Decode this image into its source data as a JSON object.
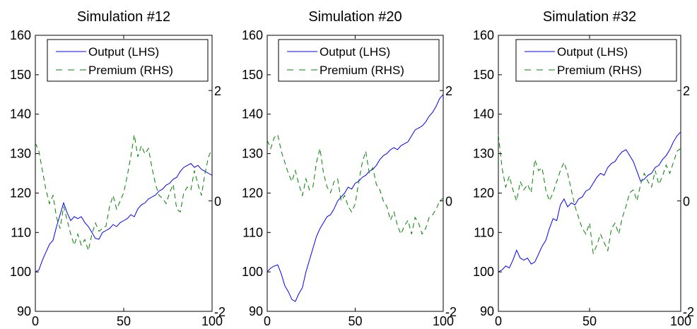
{
  "chart_data": [
    {
      "type": "line",
      "title": "Simulation #12",
      "xlim": [
        0,
        100
      ],
      "ylim": [
        90,
        160
      ],
      "y2lim": [
        -2,
        3
      ],
      "x_ticks": [
        "0",
        "50",
        "100"
      ],
      "y_ticks": [
        "90",
        "100",
        "110",
        "120",
        "130",
        "140",
        "150",
        "160"
      ],
      "y2_ticks": [
        "-2",
        "0",
        "2"
      ],
      "legend": "top-right",
      "series": [
        {
          "name": "Output (LHS)",
          "axis": "left",
          "color": "#0000ff",
          "style": "solid",
          "x": [
            0,
            2,
            4,
            6,
            8,
            10,
            12,
            14,
            16,
            18,
            20,
            22,
            24,
            26,
            28,
            30,
            32,
            34,
            36,
            38,
            40,
            42,
            44,
            46,
            48,
            50,
            52,
            54,
            56,
            58,
            60,
            62,
            64,
            66,
            68,
            70,
            72,
            74,
            76,
            78,
            80,
            82,
            84,
            86,
            88,
            90,
            92,
            94,
            96,
            98,
            100
          ],
          "y": [
            100,
            100.5,
            103,
            105,
            107,
            108,
            111.5,
            114.5,
            117.5,
            115,
            113,
            114,
            113.5,
            114,
            112.5,
            111.5,
            110,
            108.5,
            108.3,
            110,
            110.5,
            111,
            112,
            111.5,
            112.5,
            113,
            113.5,
            114.5,
            114,
            116,
            117,
            117.5,
            118.5,
            119,
            119.5,
            120.5,
            121,
            122,
            122.5,
            123.5,
            124,
            125.5,
            126.5,
            127,
            127.5,
            126.5,
            127,
            126,
            125.5,
            125,
            124.5
          ]
        },
        {
          "name": "Premium (RHS)",
          "axis": "right",
          "color": "#008000",
          "style": "dashed",
          "x": [
            0,
            2,
            4,
            6,
            8,
            10,
            12,
            14,
            16,
            18,
            20,
            22,
            24,
            26,
            28,
            30,
            32,
            34,
            36,
            38,
            40,
            42,
            44,
            46,
            48,
            50,
            52,
            54,
            56,
            58,
            60,
            62,
            64,
            66,
            68,
            70,
            72,
            74,
            76,
            78,
            80,
            82,
            84,
            86,
            88,
            90,
            92,
            94,
            96,
            98,
            100
          ],
          "y": [
            1.05,
            0.9,
            0.55,
            0.2,
            -0.05,
            0.1,
            -0.3,
            -0.5,
            -0.1,
            -0.35,
            -0.6,
            -0.8,
            -0.6,
            -0.8,
            -0.7,
            -0.9,
            -0.6,
            -0.4,
            -0.55,
            -0.5,
            -0.45,
            -0.1,
            0.1,
            -0.15,
            0.0,
            0.15,
            0.45,
            0.8,
            1.2,
            0.8,
            1.0,
            0.85,
            0.95,
            0.6,
            0.3,
            0.1,
            0.05,
            -0.05,
            0.15,
            0.3,
            -0.15,
            -0.2,
            0.15,
            0.25,
            0.2,
            0.55,
            0.3,
            0.1,
            0.5,
            0.8,
            0.95
          ]
        }
      ]
    },
    {
      "type": "line",
      "title": "Simulation #20",
      "xlim": [
        0,
        100
      ],
      "ylim": [
        90,
        160
      ],
      "y2lim": [
        -2,
        3
      ],
      "x_ticks": [
        "0",
        "50",
        "100"
      ],
      "y_ticks": [
        "90",
        "100",
        "110",
        "120",
        "130",
        "140",
        "150",
        "160"
      ],
      "y2_ticks": [
        "-2",
        "0",
        "2"
      ],
      "legend": "top-right",
      "series": [
        {
          "name": "Output (LHS)",
          "axis": "left",
          "color": "#0000ff",
          "style": "solid",
          "x": [
            0,
            2,
            4,
            6,
            8,
            10,
            12,
            14,
            16,
            18,
            20,
            22,
            24,
            26,
            28,
            30,
            32,
            34,
            36,
            38,
            40,
            42,
            44,
            46,
            48,
            50,
            52,
            54,
            56,
            58,
            60,
            62,
            64,
            66,
            68,
            70,
            72,
            74,
            76,
            78,
            80,
            82,
            84,
            86,
            88,
            90,
            92,
            94,
            96,
            98,
            100
          ],
          "y": [
            100,
            101,
            101.5,
            101.8,
            99.5,
            96.5,
            95,
            93,
            92.5,
            94.5,
            96,
            100,
            103,
            106,
            109,
            111,
            112.5,
            114,
            114.5,
            116,
            118,
            119,
            120,
            121.5,
            121,
            122.5,
            123,
            124,
            124.5,
            125.5,
            126,
            127,
            128.5,
            129.5,
            130,
            131,
            131.5,
            131,
            132,
            132.5,
            133,
            134.5,
            136,
            136.5,
            137,
            138,
            139.5,
            140.5,
            142,
            144,
            145
          ]
        },
        {
          "name": "Premium (RHS)",
          "axis": "right",
          "color": "#008000",
          "style": "dashed",
          "x": [
            0,
            2,
            4,
            6,
            8,
            10,
            12,
            14,
            16,
            18,
            20,
            22,
            24,
            26,
            28,
            30,
            32,
            34,
            36,
            38,
            40,
            42,
            44,
            46,
            48,
            50,
            52,
            54,
            56,
            58,
            60,
            62,
            64,
            66,
            68,
            70,
            72,
            74,
            76,
            78,
            80,
            82,
            84,
            86,
            88,
            90,
            92,
            94,
            96,
            98,
            100
          ],
          "y": [
            1.1,
            0.95,
            1.15,
            1.2,
            0.9,
            0.7,
            0.5,
            0.35,
            0.55,
            0.3,
            0.1,
            0.4,
            0.2,
            0.25,
            0.7,
            0.95,
            0.5,
            0.25,
            0.15,
            0.35,
            0.4,
            0.0,
            0.1,
            -0.1,
            -0.2,
            -0.05,
            0.35,
            0.7,
            0.9,
            0.5,
            0.6,
            0.3,
            0.2,
            0.0,
            -0.1,
            -0.35,
            -0.2,
            -0.45,
            -0.6,
            -0.45,
            -0.35,
            -0.6,
            -0.3,
            -0.4,
            -0.6,
            -0.5,
            -0.3,
            -0.25,
            -0.15,
            0.0,
            0.05
          ]
        }
      ]
    },
    {
      "type": "line",
      "title": "Simulation #32",
      "xlim": [
        0,
        100
      ],
      "ylim": [
        90,
        160
      ],
      "y2lim": [
        -2,
        3
      ],
      "x_ticks": [
        "0",
        "50",
        "100"
      ],
      "y_ticks": [
        "90",
        "100",
        "110",
        "120",
        "130",
        "140",
        "150",
        "160"
      ],
      "y2_ticks": [
        "-2",
        "0",
        "2"
      ],
      "legend": "top-right",
      "series": [
        {
          "name": "Output (LHS)",
          "axis": "left",
          "color": "#0000ff",
          "style": "solid",
          "x": [
            0,
            2,
            4,
            6,
            8,
            10,
            12,
            14,
            16,
            18,
            20,
            22,
            24,
            26,
            28,
            30,
            32,
            34,
            36,
            38,
            40,
            42,
            44,
            46,
            48,
            50,
            52,
            54,
            56,
            58,
            60,
            62,
            64,
            66,
            68,
            70,
            72,
            74,
            76,
            78,
            80,
            82,
            84,
            86,
            88,
            90,
            92,
            94,
            96,
            98,
            100
          ],
          "y": [
            100,
            100.5,
            101.5,
            101,
            103,
            105.5,
            103.5,
            103,
            103.5,
            102,
            102.5,
            104.5,
            106.5,
            108,
            111,
            113.5,
            113,
            117,
            118.5,
            116.5,
            117.5,
            117,
            118.5,
            119,
            120.5,
            121,
            122.5,
            124,
            125,
            124.5,
            126.5,
            127.5,
            128,
            129.5,
            130.5,
            131,
            129.5,
            128,
            125.5,
            123,
            123.5,
            124.5,
            125,
            126.5,
            127,
            128.5,
            129.5,
            131,
            133,
            134.5,
            135.5
          ]
        },
        {
          "name": "Premium (RHS)",
          "axis": "right",
          "color": "#008000",
          "style": "dashed",
          "x": [
            0,
            2,
            4,
            6,
            8,
            10,
            12,
            14,
            16,
            18,
            20,
            22,
            24,
            26,
            28,
            30,
            32,
            34,
            36,
            38,
            40,
            42,
            44,
            46,
            48,
            50,
            52,
            54,
            56,
            58,
            60,
            62,
            64,
            66,
            68,
            70,
            72,
            74,
            76,
            78,
            80,
            82,
            84,
            86,
            88,
            90,
            92,
            94,
            96,
            98,
            100
          ],
          "y": [
            1.2,
            0.6,
            0.25,
            0.45,
            0.2,
            0.0,
            0.35,
            0.2,
            0.3,
            0.15,
            0.75,
            0.55,
            0.6,
            0.2,
            0.0,
            0.15,
            0.35,
            0.55,
            0.7,
            0.5,
            0.2,
            -0.1,
            -0.3,
            -0.5,
            -0.6,
            -0.4,
            -0.95,
            -0.8,
            -0.6,
            -0.75,
            -0.9,
            -0.5,
            -0.4,
            -0.6,
            -0.3,
            -0.1,
            0.15,
            0.2,
            0.0,
            0.3,
            0.5,
            0.35,
            0.25,
            0.55,
            0.3,
            0.45,
            0.65,
            0.5,
            0.7,
            0.9,
            0.95
          ]
        }
      ]
    }
  ]
}
